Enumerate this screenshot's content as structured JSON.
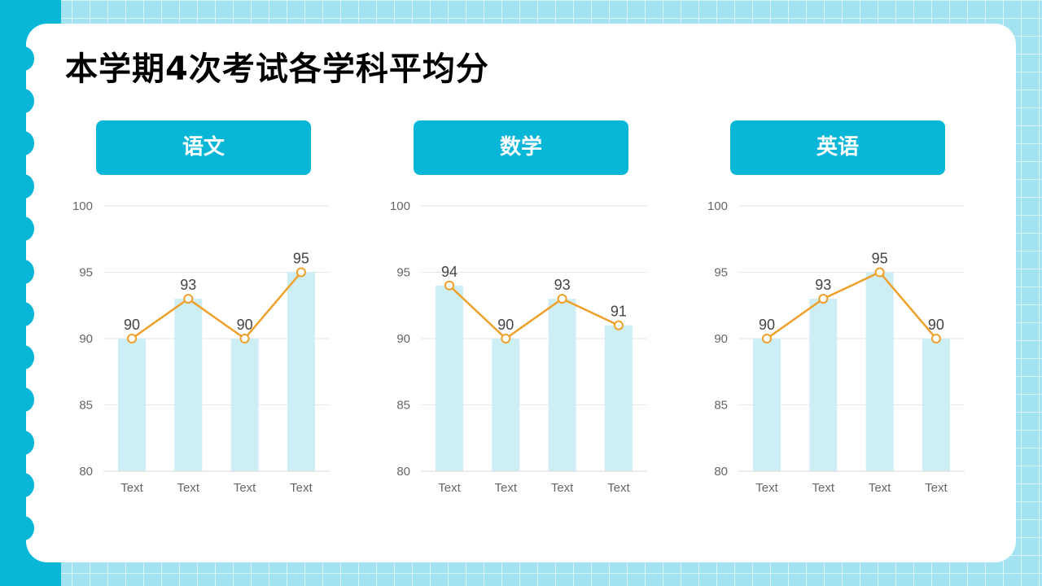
{
  "title": "本学期4次考试各学科平均分",
  "colors": {
    "accent": "#08b6d8",
    "bar": "#cdeef5",
    "line": "#efa02a",
    "axis_text": "#666666",
    "grid": "#e6e6e6"
  },
  "chart_data": [
    {
      "type": "bar+line",
      "title": "语文",
      "categories": [
        "Text",
        "Text",
        "Text",
        "Text"
      ],
      "values": [
        90,
        93,
        90,
        95
      ],
      "ylim": [
        80,
        100
      ],
      "yticks": [
        80,
        85,
        90,
        95,
        100
      ],
      "grid": true
    },
    {
      "type": "bar+line",
      "title": "数学",
      "categories": [
        "Text",
        "Text",
        "Text",
        "Text"
      ],
      "values": [
        94,
        90,
        93,
        91
      ],
      "ylim": [
        80,
        100
      ],
      "yticks": [
        80,
        85,
        90,
        95,
        100
      ],
      "grid": true
    },
    {
      "type": "bar+line",
      "title": "英语",
      "categories": [
        "Text",
        "Text",
        "Text",
        "Text"
      ],
      "values": [
        90,
        93,
        95,
        90
      ],
      "ylim": [
        80,
        100
      ],
      "yticks": [
        80,
        85,
        90,
        95,
        100
      ],
      "grid": true
    }
  ]
}
